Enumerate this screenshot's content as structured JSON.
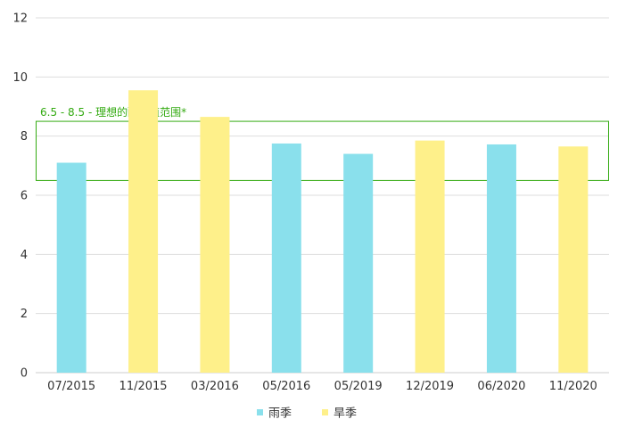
{
  "chart_data": {
    "type": "bar",
    "title": "",
    "xlabel": "",
    "ylabel": "",
    "ylim": [
      0,
      12
    ],
    "yticks": [
      0,
      2,
      4,
      6,
      8,
      10,
      12
    ],
    "grid": true,
    "categories": [
      "07/2015",
      "11/2015",
      "03/2016",
      "05/2016",
      "05/2019",
      "12/2019",
      "06/2020",
      "11/2020"
    ],
    "values": [
      7.1,
      9.55,
      8.65,
      7.75,
      7.4,
      7.85,
      7.72,
      7.65
    ],
    "bar_series": [
      "雨季",
      "旱季",
      "旱季",
      "雨季",
      "雨季",
      "旱季",
      "雨季",
      "旱季"
    ],
    "series": [
      {
        "name": "雨季",
        "color": "#8ae0ec"
      },
      {
        "name": "旱季",
        "color": "#fef08a"
      }
    ],
    "legend_position": "bottom",
    "reference_band": {
      "from": 6.5,
      "to": 8.5,
      "label": "6.5 - 8.5 - 理想的酸碱值范围*",
      "color": "#33aa11"
    }
  }
}
